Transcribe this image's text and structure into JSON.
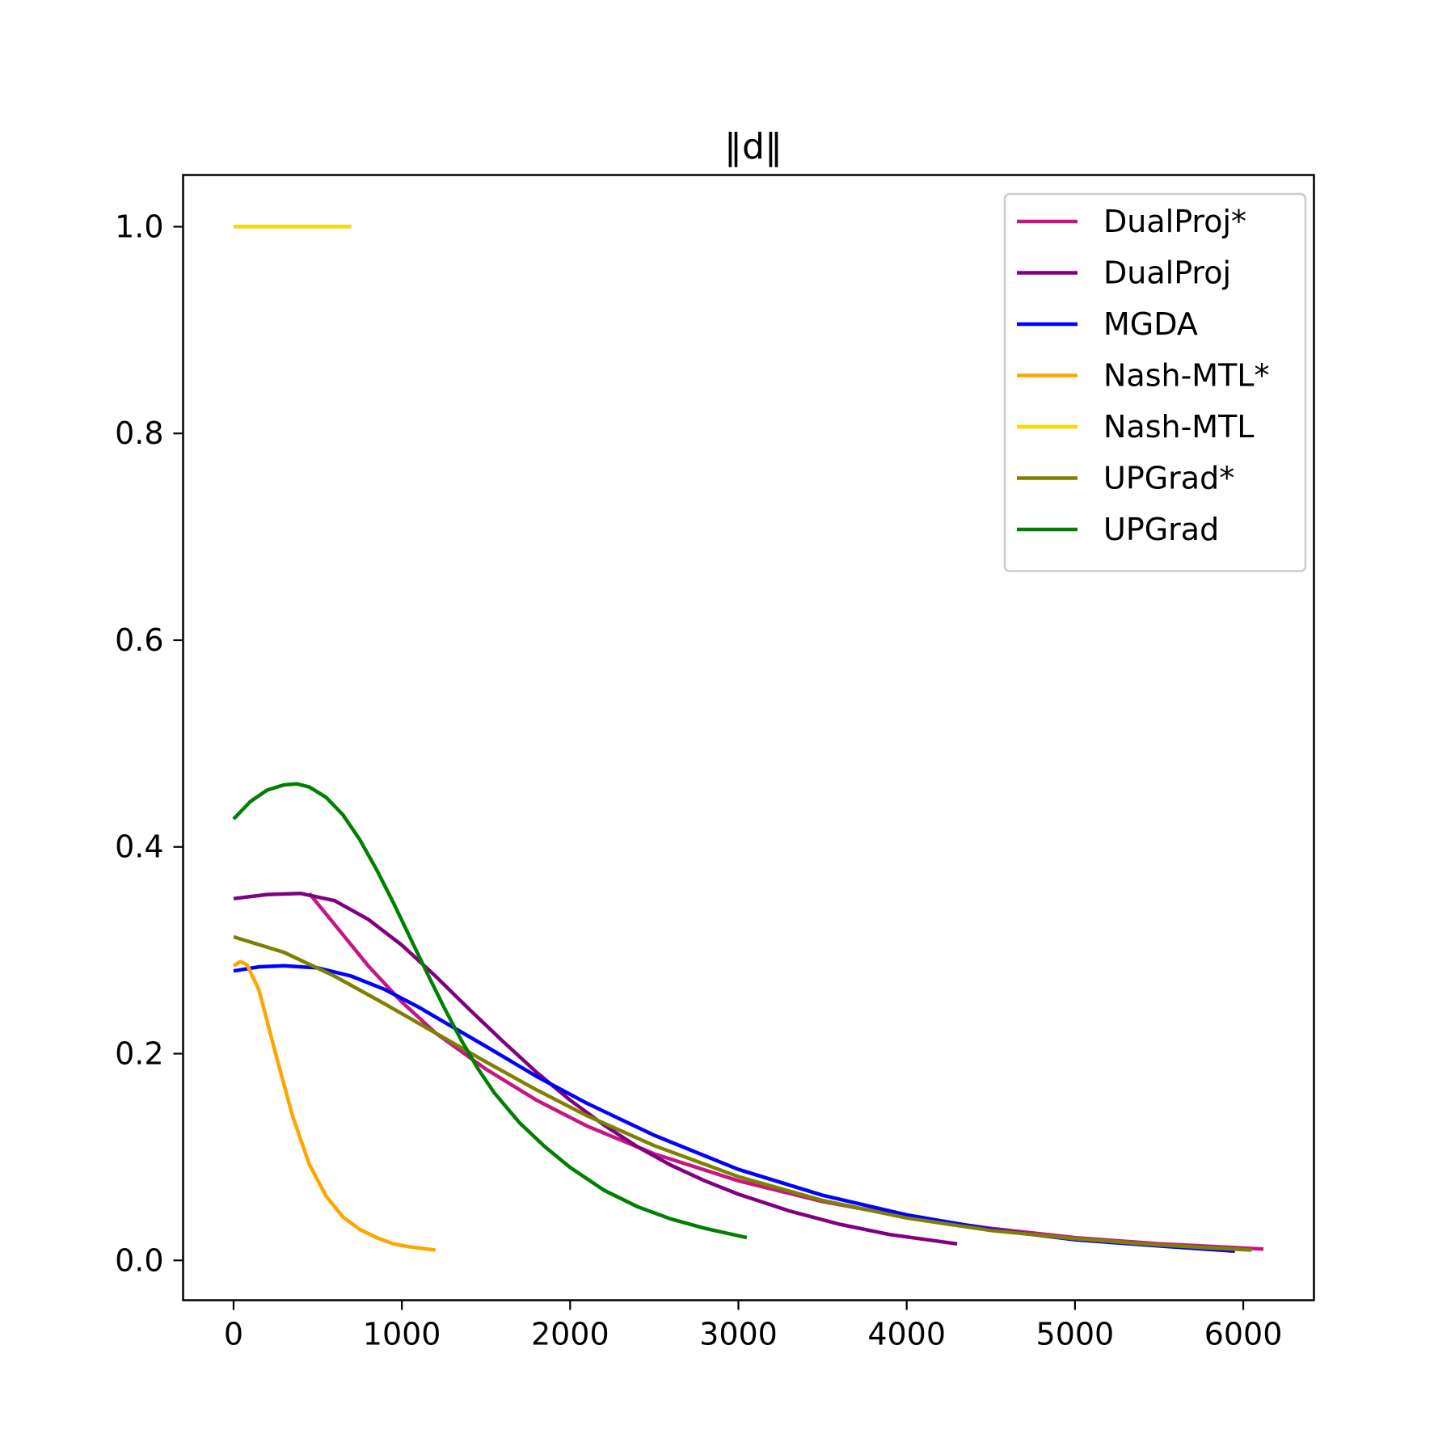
{
  "chart_data": {
    "type": "line",
    "title": "‖d‖",
    "xlabel": "",
    "ylabel": "",
    "xlim": [
      -300,
      6420
    ],
    "ylim": [
      -0.0385,
      1.05
    ],
    "xticks": [
      0,
      1000,
      2000,
      3000,
      4000,
      5000,
      6000
    ],
    "xtick_labels": [
      "0",
      "1000",
      "2000",
      "3000",
      "4000",
      "5000",
      "6000"
    ],
    "yticks": [
      0.0,
      0.2,
      0.4,
      0.6,
      0.8,
      1.0
    ],
    "ytick_labels": [
      "0.0",
      "0.2",
      "0.4",
      "0.6",
      "0.8",
      "1.0"
    ],
    "grid": false,
    "legend_position": "top-right",
    "series": [
      {
        "name": "DualProj*",
        "color": "#c71585",
        "x": [
          450,
          600,
          800,
          1000,
          1200,
          1500,
          1800,
          2100,
          2500,
          3000,
          3500,
          4000,
          4500,
          5000,
          5500,
          6120
        ],
        "y": [
          0.355,
          0.325,
          0.285,
          0.25,
          0.22,
          0.185,
          0.155,
          0.13,
          0.103,
          0.077,
          0.057,
          0.042,
          0.031,
          0.022,
          0.016,
          0.011
        ]
      },
      {
        "name": "DualProj",
        "color": "#800080",
        "x": [
          0,
          200,
          400,
          600,
          800,
          1000,
          1200,
          1400,
          1600,
          1800,
          2000,
          2200,
          2400,
          2600,
          2800,
          3000,
          3300,
          3600,
          3900,
          4300
        ],
        "y": [
          0.35,
          0.354,
          0.355,
          0.348,
          0.33,
          0.305,
          0.275,
          0.243,
          0.212,
          0.182,
          0.155,
          0.131,
          0.11,
          0.092,
          0.077,
          0.064,
          0.048,
          0.035,
          0.025,
          0.016
        ]
      },
      {
        "name": "MGDA",
        "color": "#0000ff",
        "x": [
          0,
          150,
          300,
          500,
          700,
          900,
          1100,
          1300,
          1500,
          1800,
          2100,
          2500,
          3000,
          3500,
          4000,
          4500,
          5000,
          5500,
          5950
        ],
        "y": [
          0.28,
          0.284,
          0.285,
          0.283,
          0.275,
          0.262,
          0.245,
          0.226,
          0.207,
          0.178,
          0.152,
          0.121,
          0.088,
          0.063,
          0.044,
          0.03,
          0.02,
          0.014,
          0.009
        ]
      },
      {
        "name": "Nash-MTL*",
        "color": "#ffa500",
        "x": [
          0,
          40,
          80,
          150,
          250,
          350,
          450,
          550,
          650,
          750,
          850,
          950,
          1050,
          1200
        ],
        "y": [
          0.285,
          0.289,
          0.286,
          0.262,
          0.2,
          0.14,
          0.093,
          0.062,
          0.042,
          0.03,
          0.022,
          0.016,
          0.013,
          0.01
        ]
      },
      {
        "name": "Nash-MTL",
        "color": "#ffd700",
        "x": [
          0,
          700
        ],
        "y": [
          1.0,
          1.0
        ]
      },
      {
        "name": "UPGrad*",
        "color": "#808000",
        "x": [
          0,
          300,
          600,
          900,
          1200,
          1500,
          1800,
          2100,
          2500,
          3000,
          3500,
          4000,
          4500,
          5000,
          5500,
          6050
        ],
        "y": [
          0.313,
          0.298,
          0.275,
          0.248,
          0.22,
          0.192,
          0.165,
          0.14,
          0.111,
          0.081,
          0.058,
          0.041,
          0.029,
          0.021,
          0.015,
          0.01
        ]
      },
      {
        "name": "UPGrad",
        "color": "#008000",
        "x": [
          0,
          100,
          200,
          300,
          375,
          450,
          550,
          650,
          750,
          850,
          950,
          1050,
          1150,
          1250,
          1350,
          1450,
          1550,
          1700,
          1850,
          2000,
          2200,
          2400,
          2600,
          2800,
          3050
        ],
        "y": [
          0.427,
          0.444,
          0.455,
          0.46,
          0.461,
          0.458,
          0.448,
          0.431,
          0.407,
          0.378,
          0.346,
          0.312,
          0.278,
          0.245,
          0.214,
          0.186,
          0.162,
          0.133,
          0.11,
          0.09,
          0.068,
          0.052,
          0.04,
          0.031,
          0.022
        ]
      }
    ]
  }
}
